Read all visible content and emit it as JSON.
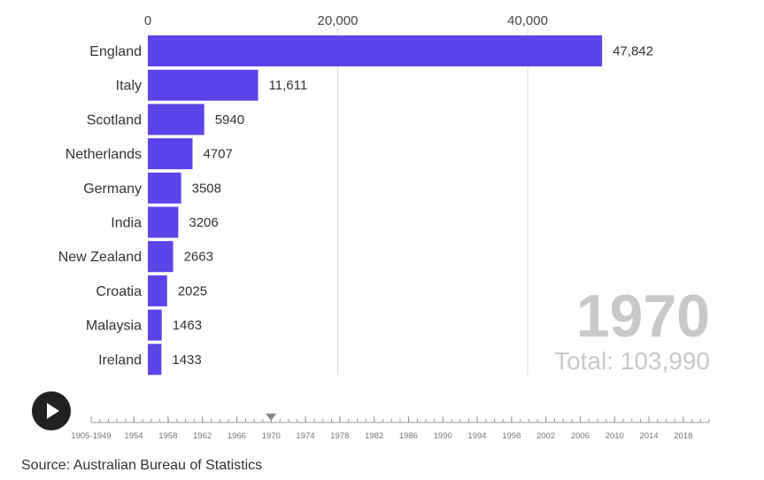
{
  "chart_data": {
    "type": "bar",
    "orientation": "horizontal",
    "categories": [
      "England",
      "Italy",
      "Scotland",
      "Netherlands",
      "Germany",
      "India",
      "New Zealand",
      "Croatia",
      "Malaysia",
      "Ireland"
    ],
    "values": [
      47842,
      11611,
      5940,
      4707,
      3508,
      3206,
      2663,
      2025,
      1463,
      1433
    ],
    "value_labels": [
      "47,842",
      "11,611",
      "5940",
      "4707",
      "3508",
      "3206",
      "2663",
      "2025",
      "1463",
      "1433"
    ],
    "xticks": [
      0,
      20000,
      40000
    ],
    "xtick_labels": [
      "0",
      "20,000",
      "40,000"
    ],
    "xlim": [
      0,
      53000
    ],
    "x_axis_position": "top",
    "grid": true,
    "bar_color": "#5b45e8"
  },
  "overlay": {
    "year": "1970",
    "total": "Total: 103,990"
  },
  "controls": {
    "play_icon": "play-icon"
  },
  "timeline": {
    "labels": [
      "1905-1949",
      "1954",
      "1958",
      "1962",
      "1966",
      "1970",
      "1974",
      "1978",
      "1982",
      "1986",
      "1990",
      "1994",
      "1998",
      "2002",
      "2006",
      "2010",
      "2014",
      "2018"
    ],
    "current": "1970"
  },
  "source": "Source: Australian Bureau of Statistics"
}
